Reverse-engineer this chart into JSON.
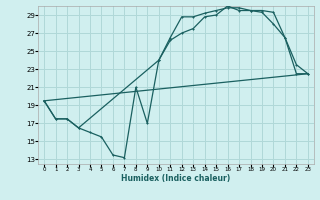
{
  "xlabel": "Humidex (Indice chaleur)",
  "bg_color": "#d0efef",
  "line_color": "#1a6060",
  "grid_color": "#b0d8d8",
  "xlim": [
    -0.5,
    23.5
  ],
  "ylim": [
    12.5,
    30.0
  ],
  "xticks": [
    0,
    1,
    2,
    3,
    4,
    5,
    6,
    7,
    8,
    9,
    10,
    11,
    12,
    13,
    14,
    15,
    16,
    17,
    18,
    19,
    20,
    21,
    22,
    23
  ],
  "yticks": [
    13,
    15,
    17,
    19,
    21,
    23,
    25,
    27,
    29
  ],
  "line1_x": [
    0,
    1,
    2,
    3,
    4,
    5,
    6,
    7,
    8,
    9,
    10,
    11,
    12,
    13,
    14,
    15,
    16,
    17,
    18,
    19,
    20,
    21,
    22,
    23
  ],
  "line1_y": [
    19.5,
    17.5,
    17.5,
    16.5,
    16.0,
    15.5,
    13.5,
    13.2,
    21.0,
    17.0,
    24.0,
    26.5,
    28.8,
    28.8,
    29.2,
    29.5,
    29.8,
    29.8,
    29.5,
    29.5,
    29.3,
    26.5,
    22.5,
    22.5
  ],
  "line2_x": [
    0,
    1,
    2,
    3,
    10,
    11,
    12,
    13,
    14,
    15,
    16,
    17,
    18,
    19,
    20,
    21,
    22,
    23
  ],
  "line2_y": [
    19.5,
    17.5,
    17.5,
    16.5,
    24.0,
    26.2,
    27.0,
    27.5,
    28.8,
    29.0,
    30.0,
    29.5,
    29.5,
    29.3,
    28.0,
    26.5,
    23.5,
    22.5
  ],
  "line3_x": [
    0,
    23
  ],
  "line3_y": [
    19.5,
    22.5
  ]
}
